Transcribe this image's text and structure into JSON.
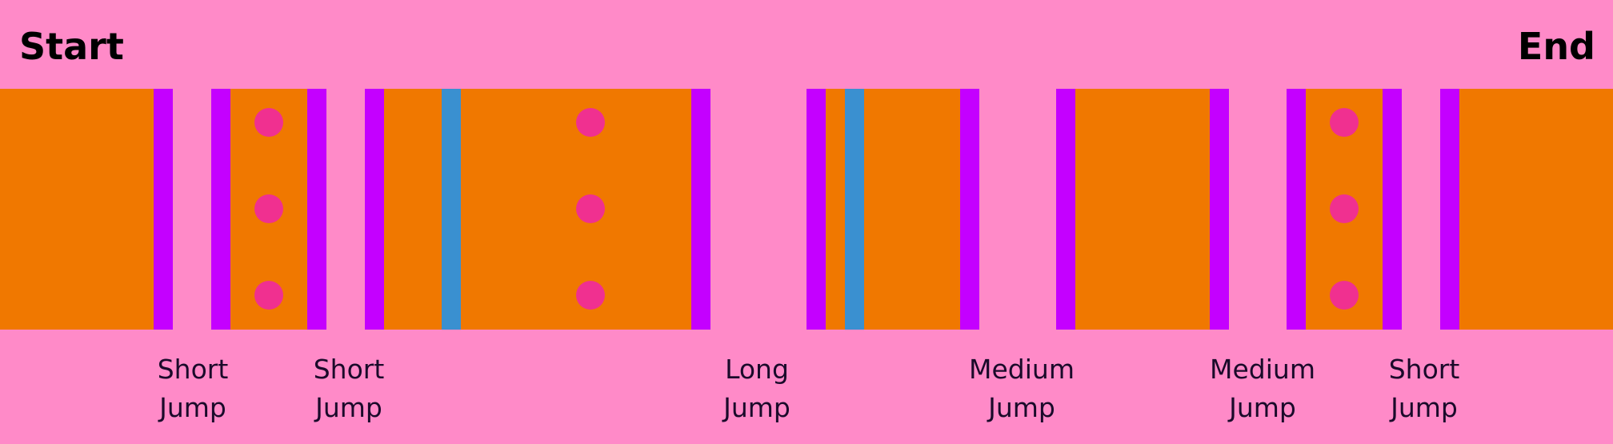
{
  "labels": {
    "start": "Start",
    "end": "End"
  },
  "colors": {
    "background": "#ff8ac8",
    "platform": "#f07800",
    "edge": "#c400ff",
    "water_column": "#3a90d0",
    "coin": "#f03090",
    "text": "#000000"
  },
  "icons": {
    "coin": "pink-circle-coin",
    "platform_edge": "purple-edge-bar",
    "water": "blue-water-column"
  },
  "jumps": [
    {
      "line1": "Short",
      "line2": "Jump"
    },
    {
      "line1": "Short",
      "line2": "Jump"
    },
    {
      "line1": "Long",
      "line2": "Jump"
    },
    {
      "line1": "Medium",
      "line2": "Jump"
    },
    {
      "line1": "Medium",
      "line2": "Jump"
    },
    {
      "line1": "Short",
      "line2": "Jump"
    }
  ]
}
